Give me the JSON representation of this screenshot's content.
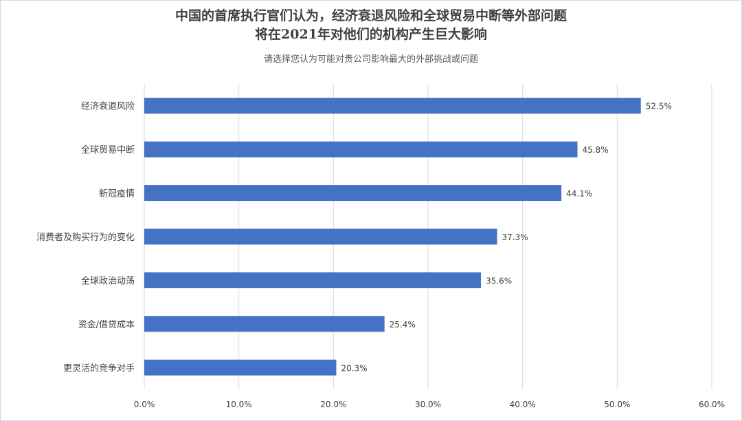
{
  "chart_data": {
    "type": "bar",
    "orientation": "horizontal",
    "title_lines": [
      "中国的首席执行官们认为，经济衰退风险和全球贸易中断等外部问题",
      "将在2021年对他们的机构产生巨大影响"
    ],
    "subtitle": "请选择您认为可能对贵公司影响最大的外部挑战或问题",
    "categories": [
      "经济衰退风险",
      "全球贸易中断",
      "新冠疫情",
      "消费者及购买行为的变化",
      "全球政治动荡",
      "资金/借贷成本",
      "更灵活的竞争对手"
    ],
    "values": [
      52.5,
      45.8,
      44.1,
      37.3,
      35.6,
      25.4,
      20.3
    ],
    "value_labels": [
      "52.5%",
      "45.8%",
      "44.1%",
      "37.3%",
      "35.6%",
      "25.4%",
      "20.3%"
    ],
    "xlim": [
      0,
      60
    ],
    "x_ticks": [
      0,
      10,
      20,
      30,
      40,
      50,
      60
    ],
    "x_tick_labels": [
      "0.0%",
      "10.0%",
      "20.0%",
      "30.0%",
      "40.0%",
      "50.0%",
      "60.0%"
    ],
    "grid": "vertical",
    "legend": "none",
    "bar_color": "#4472c4",
    "grid_color": "#d9d9d9"
  }
}
